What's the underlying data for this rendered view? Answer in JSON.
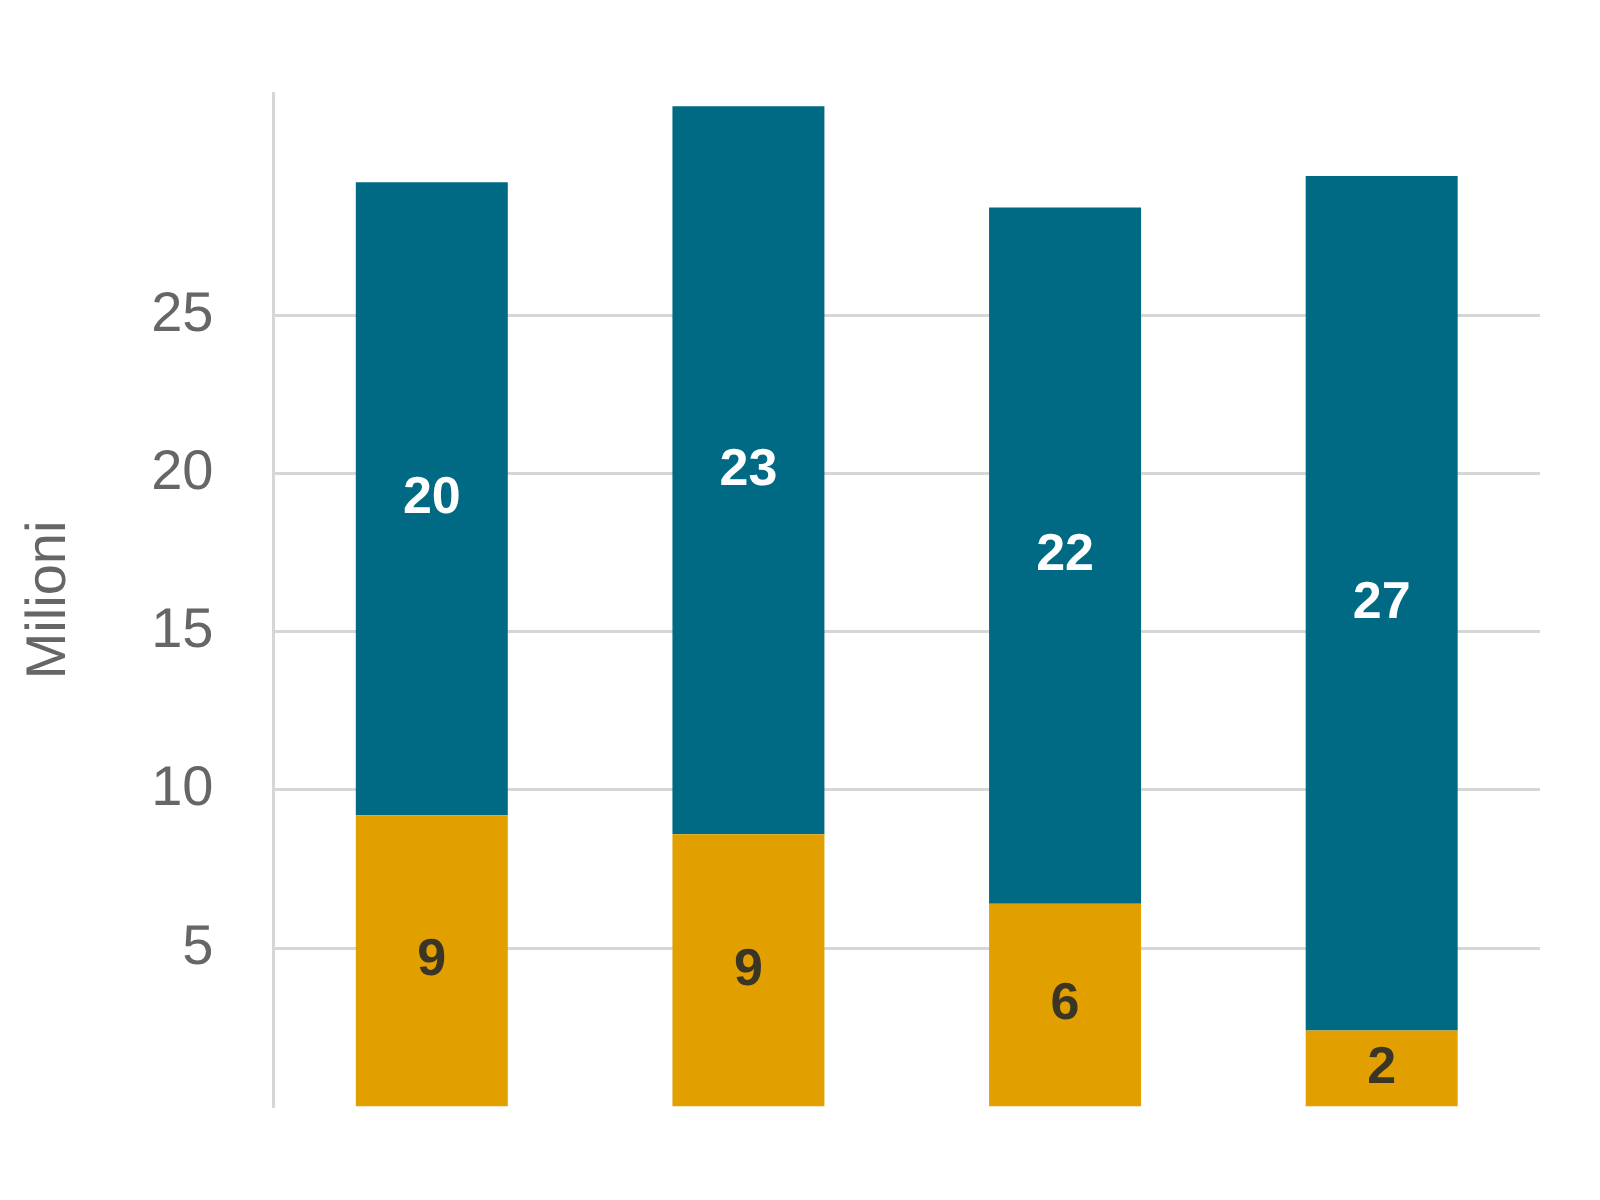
{
  "chart_data": {
    "type": "bar",
    "stacked": true,
    "ylabel": "Milioni",
    "categories": [
      null,
      null,
      null,
      null
    ],
    "series": [
      {
        "color": "#e2a000",
        "values": [
          9.2,
          8.6,
          6.4,
          2.4
        ],
        "value_labels": [
          "9",
          "9",
          "6",
          "2"
        ]
      },
      {
        "color": "#006a85",
        "values": [
          20,
          23,
          22,
          27
        ],
        "value_labels": [
          "20",
          "23",
          "22",
          "27"
        ]
      }
    ],
    "ylim": [
      0,
      32
    ],
    "yticks": [
      5,
      10,
      15,
      20,
      25
    ],
    "grid": "y",
    "legend": false
  }
}
